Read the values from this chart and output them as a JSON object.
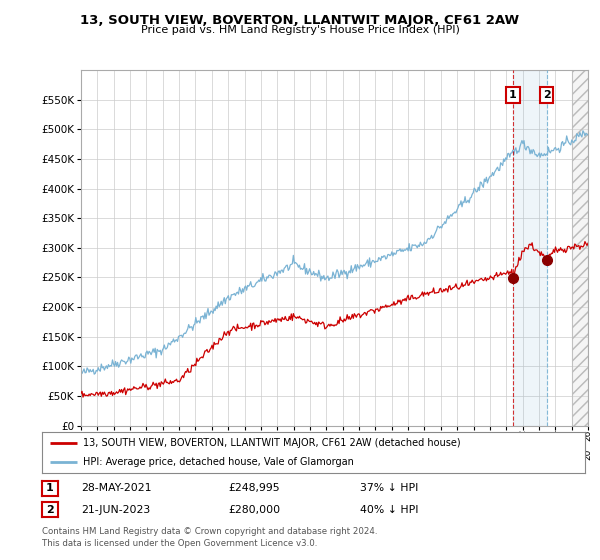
{
  "title": "13, SOUTH VIEW, BOVERTON, LLANTWIT MAJOR, CF61 2AW",
  "subtitle": "Price paid vs. HM Land Registry's House Price Index (HPI)",
  "ylim": [
    0,
    600000
  ],
  "yticks": [
    0,
    50000,
    100000,
    150000,
    200000,
    250000,
    300000,
    350000,
    400000,
    450000,
    500000,
    550000
  ],
  "ytick_labels": [
    "£0",
    "£50K",
    "£100K",
    "£150K",
    "£200K",
    "£250K",
    "£300K",
    "£350K",
    "£400K",
    "£450K",
    "£500K",
    "£550K"
  ],
  "hpi_color": "#7ab3d4",
  "price_color": "#cc0000",
  "marker1_price": 248995,
  "marker2_price": 280000,
  "t1_year": 2021.41,
  "t2_year": 2023.47,
  "legend1": "13, SOUTH VIEW, BOVERTON, LLANTWIT MAJOR, CF61 2AW (detached house)",
  "legend2": "HPI: Average price, detached house, Vale of Glamorgan",
  "footnote1": "Contains HM Land Registry data © Crown copyright and database right 2024.",
  "footnote2": "This data is licensed under the Open Government Licence v3.0.",
  "table_row1": [
    "1",
    "28-MAY-2021",
    "£248,995",
    "37% ↓ HPI"
  ],
  "table_row2": [
    "2",
    "21-JUN-2023",
    "£280,000",
    "40% ↓ HPI"
  ],
  "background_color": "#ffffff",
  "grid_color": "#cccccc",
  "xlim_start": 1995,
  "xlim_end": 2026
}
